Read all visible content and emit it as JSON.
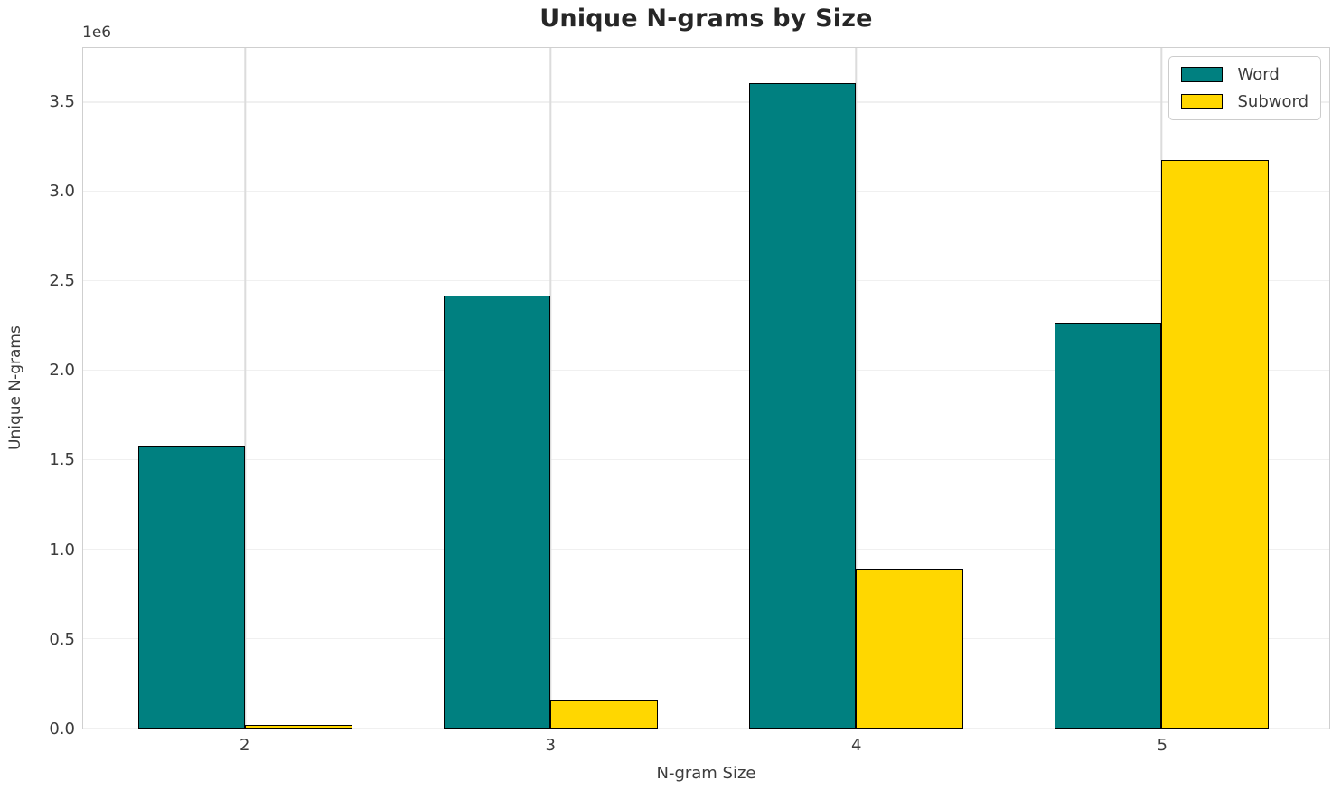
{
  "chart_data": {
    "type": "bar",
    "title": "Unique N-grams by Size",
    "xlabel": "N-gram Size",
    "ylabel": "Unique N-grams",
    "offset_label": "1e6",
    "categories": [
      "2",
      "3",
      "4",
      "5"
    ],
    "series": [
      {
        "name": "Word",
        "color": "#008080",
        "values": [
          1580000,
          2420000,
          3610000,
          2270000
        ]
      },
      {
        "name": "Subword",
        "color": "#FFD700",
        "values": [
          20000,
          160000,
          890000,
          3180000
        ]
      }
    ],
    "bar_width": 0.35,
    "bar_edge_color": "#000000",
    "xlim": [
      -0.531,
      3.549
    ],
    "ylim": [
      0,
      3806000
    ],
    "yticks": [
      {
        "value": 0,
        "label": "0.0"
      },
      {
        "value": 500000,
        "label": "0.5"
      },
      {
        "value": 1000000,
        "label": "1.0"
      },
      {
        "value": 1500000,
        "label": "1.5"
      },
      {
        "value": 2000000,
        "label": "2.0"
      },
      {
        "value": 2500000,
        "label": "2.5"
      },
      {
        "value": 3000000,
        "label": "3.0"
      },
      {
        "value": 3500000,
        "label": "3.5"
      }
    ],
    "grid": true,
    "legend_position": "upper right"
  }
}
